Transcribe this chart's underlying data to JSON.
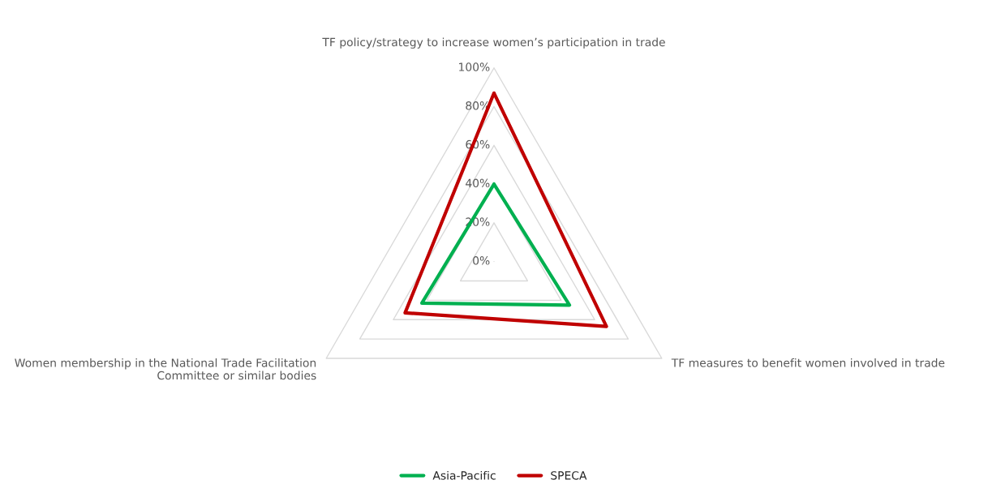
{
  "chart_data": {
    "type": "radar",
    "categories": [
      "TF policy/strategy to increase women’s participation in trade",
      "TF measures to benefit women involved in trade",
      "Women membership in the National Trade Facilitation Committee or similar bodies"
    ],
    "series": [
      {
        "name": "Asia-Pacific",
        "color": "#00b050",
        "values": [
          0.4,
          0.45,
          0.43
        ]
      },
      {
        "name": "SPECA",
        "color": "#c00000",
        "values": [
          0.87,
          0.67,
          0.53
        ]
      }
    ],
    "ylim": [
      0,
      1
    ],
    "yticks": [
      {
        "value": 0,
        "label": "0%"
      },
      {
        "value": 0.2,
        "label": "20%"
      },
      {
        "value": 0.4,
        "label": "40%"
      },
      {
        "value": 0.6,
        "label": "60%"
      },
      {
        "value": 0.8,
        "label": "80%"
      },
      {
        "value": 1,
        "label": "100%"
      }
    ],
    "grid": true,
    "legend": "bottom",
    "line_style": "solid",
    "marker": "none"
  }
}
